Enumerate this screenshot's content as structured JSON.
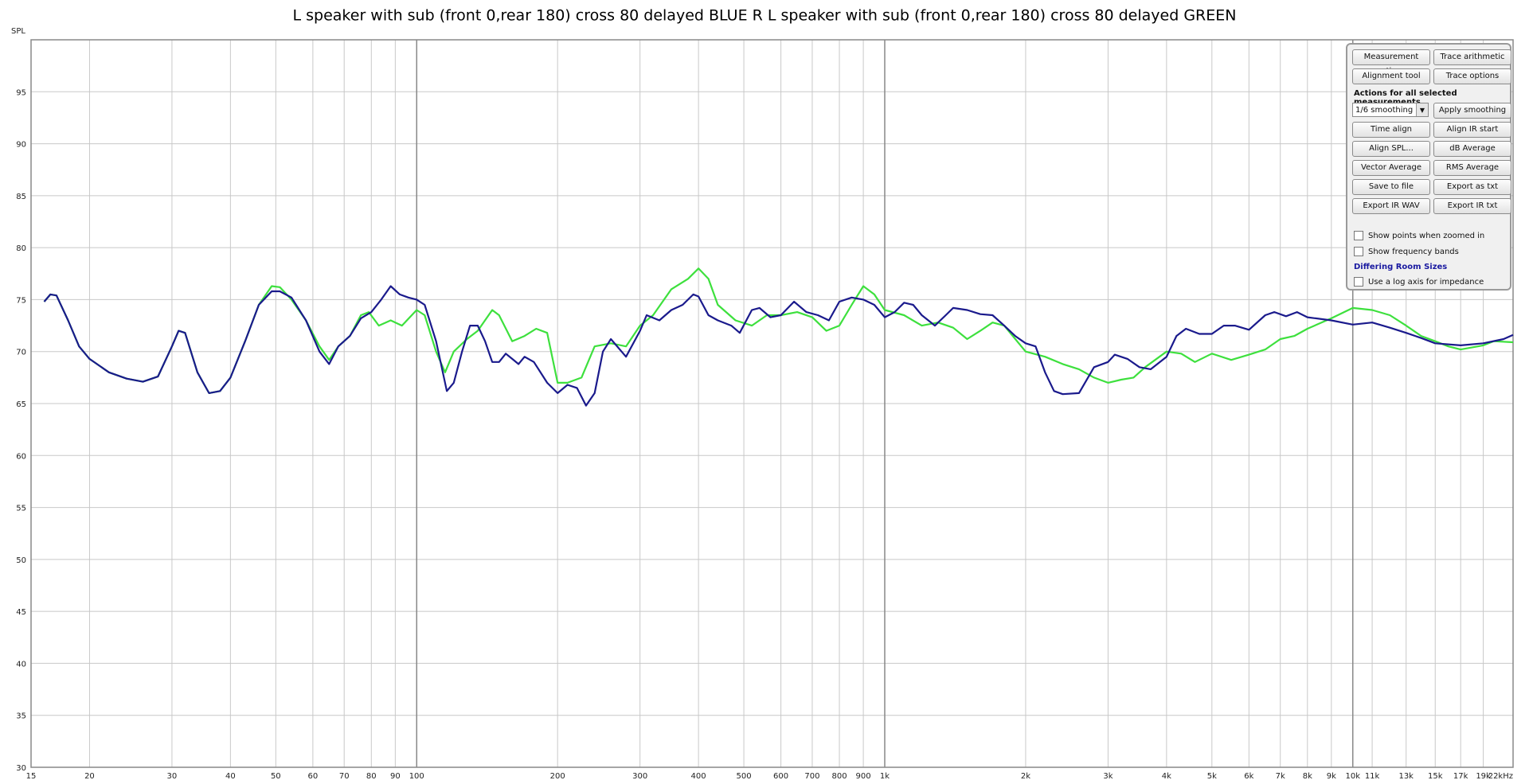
{
  "chart_data": {
    "type": "line",
    "title": "L speaker with sub (front 0,rear 180) cross 80 delayed BLUE R L speaker with sub (front 0,rear 180) cross 80 delayed GREEN",
    "y_label": "SPL",
    "log_x": true,
    "grid": true,
    "xlim": [
      15,
      22000
    ],
    "ylim": [
      30,
      100
    ],
    "xticks": [
      15,
      20,
      30,
      40,
      50,
      60,
      70,
      80,
      90,
      100,
      200,
      300,
      400,
      500,
      600,
      700,
      800,
      900,
      {
        "value": 1000,
        "label": "1k"
      },
      {
        "value": 2000,
        "label": "2k"
      },
      {
        "value": 3000,
        "label": "3k"
      },
      {
        "value": 4000,
        "label": "4k"
      },
      {
        "value": 5000,
        "label": "5k"
      },
      {
        "value": 6000,
        "label": "6k"
      },
      {
        "value": 7000,
        "label": "7k"
      },
      {
        "value": 8000,
        "label": "8k"
      },
      {
        "value": 9000,
        "label": "9k"
      },
      {
        "value": 10000,
        "label": "10k"
      },
      {
        "value": 11000,
        "label": "11k"
      },
      {
        "value": 13000,
        "label": "13k"
      },
      {
        "value": 15000,
        "label": "15k"
      },
      {
        "value": 17000,
        "label": "17k"
      },
      {
        "value": 19000,
        "label": "19k"
      },
      {
        "value": 22000,
        "label": "22kHz"
      }
    ],
    "yticks": [
      30,
      35,
      40,
      45,
      50,
      55,
      60,
      65,
      70,
      75,
      80,
      85,
      90,
      95
    ],
    "series": [
      {
        "color": "#1a1a8c",
        "x": [
          16,
          16.5,
          17,
          18,
          19,
          20,
          22,
          24,
          26,
          28,
          30,
          31,
          32,
          34,
          36,
          38,
          40,
          43,
          46,
          49,
          51,
          54,
          58,
          62,
          65,
          68,
          72,
          76,
          80,
          84,
          88,
          92,
          96,
          100,
          104,
          110,
          116,
          120,
          125,
          130,
          135,
          140,
          145,
          150,
          155,
          160,
          165,
          170,
          178,
          190,
          200,
          210,
          220,
          230,
          240,
          250,
          260,
          280,
          300,
          310,
          330,
          350,
          370,
          390,
          400,
          420,
          440,
          470,
          490,
          520,
          540,
          570,
          600,
          640,
          680,
          720,
          760,
          800,
          850,
          900,
          950,
          1000,
          1050,
          1100,
          1150,
          1200,
          1280,
          1350,
          1400,
          1500,
          1600,
          1700,
          1800,
          1900,
          2000,
          2100,
          2200,
          2300,
          2400,
          2600,
          2800,
          3000,
          3100,
          3300,
          3500,
          3700,
          4000,
          4200,
          4400,
          4700,
          5000,
          5300,
          5600,
          6000,
          6500,
          6800,
          7200,
          7600,
          8000,
          9000,
          10000,
          11000,
          12000,
          13000,
          14000,
          15000,
          17000,
          19000,
          21000,
          22000
        ],
        "values": [
          74.8,
          75.5,
          75.4,
          73,
          70.5,
          69.3,
          68,
          67.4,
          67.1,
          67.6,
          70.5,
          72,
          71.8,
          68,
          66,
          66.2,
          67.5,
          71,
          74.5,
          75.8,
          75.8,
          75.2,
          73,
          70,
          68.8,
          70.5,
          71.5,
          73.2,
          73.8,
          75,
          76.3,
          75.5,
          75.2,
          75,
          74.5,
          71,
          66.2,
          67,
          70,
          72.5,
          72.5,
          71,
          69,
          69,
          69.8,
          69.3,
          68.8,
          69.5,
          69,
          67,
          66,
          66.8,
          66.5,
          64.8,
          66,
          70,
          71.2,
          69.5,
          72,
          73.5,
          73,
          74,
          74.5,
          75.5,
          75.3,
          73.5,
          73,
          72.5,
          71.8,
          74,
          74.2,
          73.3,
          73.5,
          74.8,
          73.8,
          73.5,
          73,
          74.8,
          75.2,
          75,
          74.5,
          73.3,
          73.8,
          74.7,
          74.5,
          73.5,
          72.5,
          73.5,
          74.2,
          74,
          73.6,
          73.5,
          72.5,
          71.5,
          70.8,
          70.5,
          68,
          66.2,
          65.9,
          66,
          68.5,
          69,
          69.7,
          69.3,
          68.5,
          68.3,
          69.5,
          71.5,
          72.2,
          71.7,
          71.7,
          72.5,
          72.5,
          72.1,
          73.5,
          73.8,
          73.4,
          73.8,
          73.3,
          73,
          72.6,
          72.8,
          72.3,
          71.8,
          71.3,
          70.8,
          70.6,
          70.8,
          71.2,
          71.6
        ]
      },
      {
        "color": "#3de03d",
        "x": [
          16,
          16.5,
          17,
          18,
          19,
          20,
          22,
          24,
          26,
          28,
          30,
          31,
          32,
          34,
          36,
          38,
          40,
          43,
          46,
          49,
          51,
          54,
          58,
          62,
          65,
          68,
          72,
          76,
          79,
          83,
          88,
          93,
          100,
          104,
          110,
          115,
          120,
          128,
          135,
          145,
          150,
          160,
          170,
          180,
          190,
          200,
          210,
          225,
          240,
          260,
          280,
          300,
          320,
          350,
          380,
          400,
          420,
          440,
          480,
          520,
          560,
          600,
          650,
          700,
          750,
          800,
          850,
          900,
          950,
          1000,
          1100,
          1200,
          1300,
          1400,
          1500,
          1600,
          1700,
          1800,
          2000,
          2200,
          2400,
          2600,
          2800,
          3000,
          3200,
          3400,
          3600,
          4000,
          4300,
          4600,
          5000,
          5500,
          6000,
          6500,
          7000,
          7500,
          8000,
          9000,
          10000,
          11000,
          12000,
          13000,
          14000,
          15000,
          16000,
          17000,
          19000,
          20000,
          22000
        ],
        "values": [
          74.8,
          75.5,
          75.4,
          73,
          70.5,
          69.3,
          68,
          67.4,
          67.1,
          67.6,
          70.5,
          72,
          71.8,
          68,
          66,
          66.2,
          67.5,
          71,
          74.5,
          76.3,
          76.2,
          75,
          73,
          70.5,
          69.2,
          70.5,
          71.5,
          73.5,
          73.8,
          72.5,
          73,
          72.5,
          74,
          73.5,
          70,
          68,
          70,
          71.2,
          72,
          74,
          73.5,
          71,
          71.5,
          72.2,
          71.8,
          67,
          67,
          67.5,
          70.5,
          70.8,
          70.5,
          72.5,
          73.5,
          76,
          77,
          78,
          77,
          74.5,
          73,
          72.5,
          73.5,
          73.5,
          73.8,
          73.3,
          72,
          72.5,
          74.5,
          76.3,
          75.5,
          74,
          73.5,
          72.5,
          72.8,
          72.3,
          71.2,
          72,
          72.8,
          72.5,
          70,
          69.5,
          68.8,
          68.3,
          67.5,
          67,
          67.3,
          67.5,
          68.5,
          70,
          69.8,
          69,
          69.8,
          69.2,
          69.7,
          70.2,
          71.2,
          71.5,
          72.2,
          73.2,
          74.2,
          74,
          73.5,
          72.5,
          71.5,
          71,
          70.5,
          70.2,
          70.6,
          71,
          70.9
        ]
      }
    ]
  },
  "panel": {
    "buttons": [
      "Measurement actions",
      "Trace arithmetic",
      "Alignment tool",
      "Trace options"
    ],
    "heading": "Actions for all selected measurements",
    "smoothing": "1/6 smoothing",
    "actions": [
      "Apply smoothing",
      "Time align",
      "Align IR start",
      "Align SPL...",
      "dB Average",
      "Vector Average",
      "RMS Average",
      "Save to file",
      "Export as txt",
      "Export IR WAV",
      "Export IR txt"
    ],
    "checks": [
      "Show points when zoomed in",
      "Show frequency bands"
    ],
    "room": "Differing Room Sizes",
    "check_log": "Use a log axis for impedance"
  }
}
